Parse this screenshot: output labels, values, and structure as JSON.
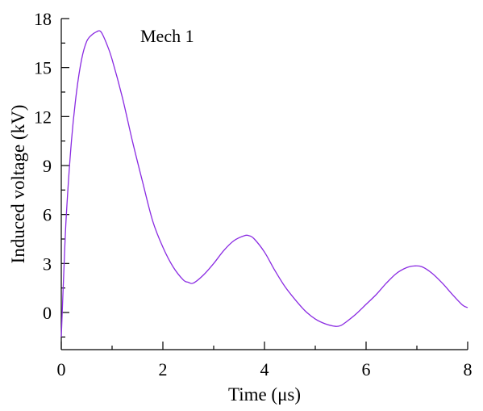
{
  "chart_data": {
    "type": "line",
    "title": "",
    "xlabel": "Time  (μs)",
    "ylabel": "Induced voltage  (kV)",
    "xlim": [
      0,
      8
    ],
    "ylim": [
      -2,
      18
    ],
    "x_major_ticks": [
      0,
      2,
      4,
      6,
      8
    ],
    "x_tick_labels": [
      "0",
      "2",
      "4",
      "6",
      "8"
    ],
    "x_minor_ticks": [
      1,
      3,
      5,
      7
    ],
    "y_major_ticks": [
      0,
      3,
      6,
      9,
      12,
      15,
      18
    ],
    "y_tick_labels": [
      "0",
      "3",
      "6",
      "9",
      "12",
      "15",
      "18"
    ],
    "y_minor_ticks": [
      -1.5,
      1.5,
      4.5,
      7.5,
      10.5,
      13.5,
      16.5
    ],
    "grid": false,
    "legend": "none",
    "annotations": [
      {
        "text": "Mech 1",
        "x": 2.4,
        "y": 16.8
      }
    ],
    "series": [
      {
        "color": "#8a2be2",
        "x": [
          0,
          0.05,
          0.1,
          0.2,
          0.3,
          0.4,
          0.5,
          0.6,
          0.7,
          0.75,
          0.8,
          0.9,
          1.0,
          1.2,
          1.4,
          1.6,
          1.8,
          2.0,
          2.2,
          2.4,
          2.5,
          2.6,
          2.8,
          3.0,
          3.2,
          3.4,
          3.6,
          3.7,
          3.8,
          4.0,
          4.2,
          4.4,
          4.6,
          4.8,
          5.0,
          5.2,
          5.4,
          5.5,
          5.6,
          5.8,
          6.0,
          6.2,
          6.4,
          6.6,
          6.8,
          6.95,
          7.1,
          7.3,
          7.5,
          7.7,
          7.9,
          8.0
        ],
        "y": [
          -1.5,
          2.5,
          6.0,
          10.5,
          13.5,
          15.5,
          16.6,
          17.0,
          17.2,
          17.25,
          17.1,
          16.4,
          15.5,
          13.2,
          10.5,
          8.0,
          5.6,
          4.0,
          2.8,
          2.0,
          1.85,
          1.8,
          2.3,
          3.0,
          3.8,
          4.4,
          4.7,
          4.7,
          4.5,
          3.7,
          2.6,
          1.6,
          0.8,
          0.1,
          -0.4,
          -0.7,
          -0.85,
          -0.8,
          -0.6,
          -0.1,
          0.5,
          1.1,
          1.8,
          2.4,
          2.75,
          2.85,
          2.8,
          2.4,
          1.8,
          1.1,
          0.45,
          0.3
        ]
      }
    ]
  }
}
